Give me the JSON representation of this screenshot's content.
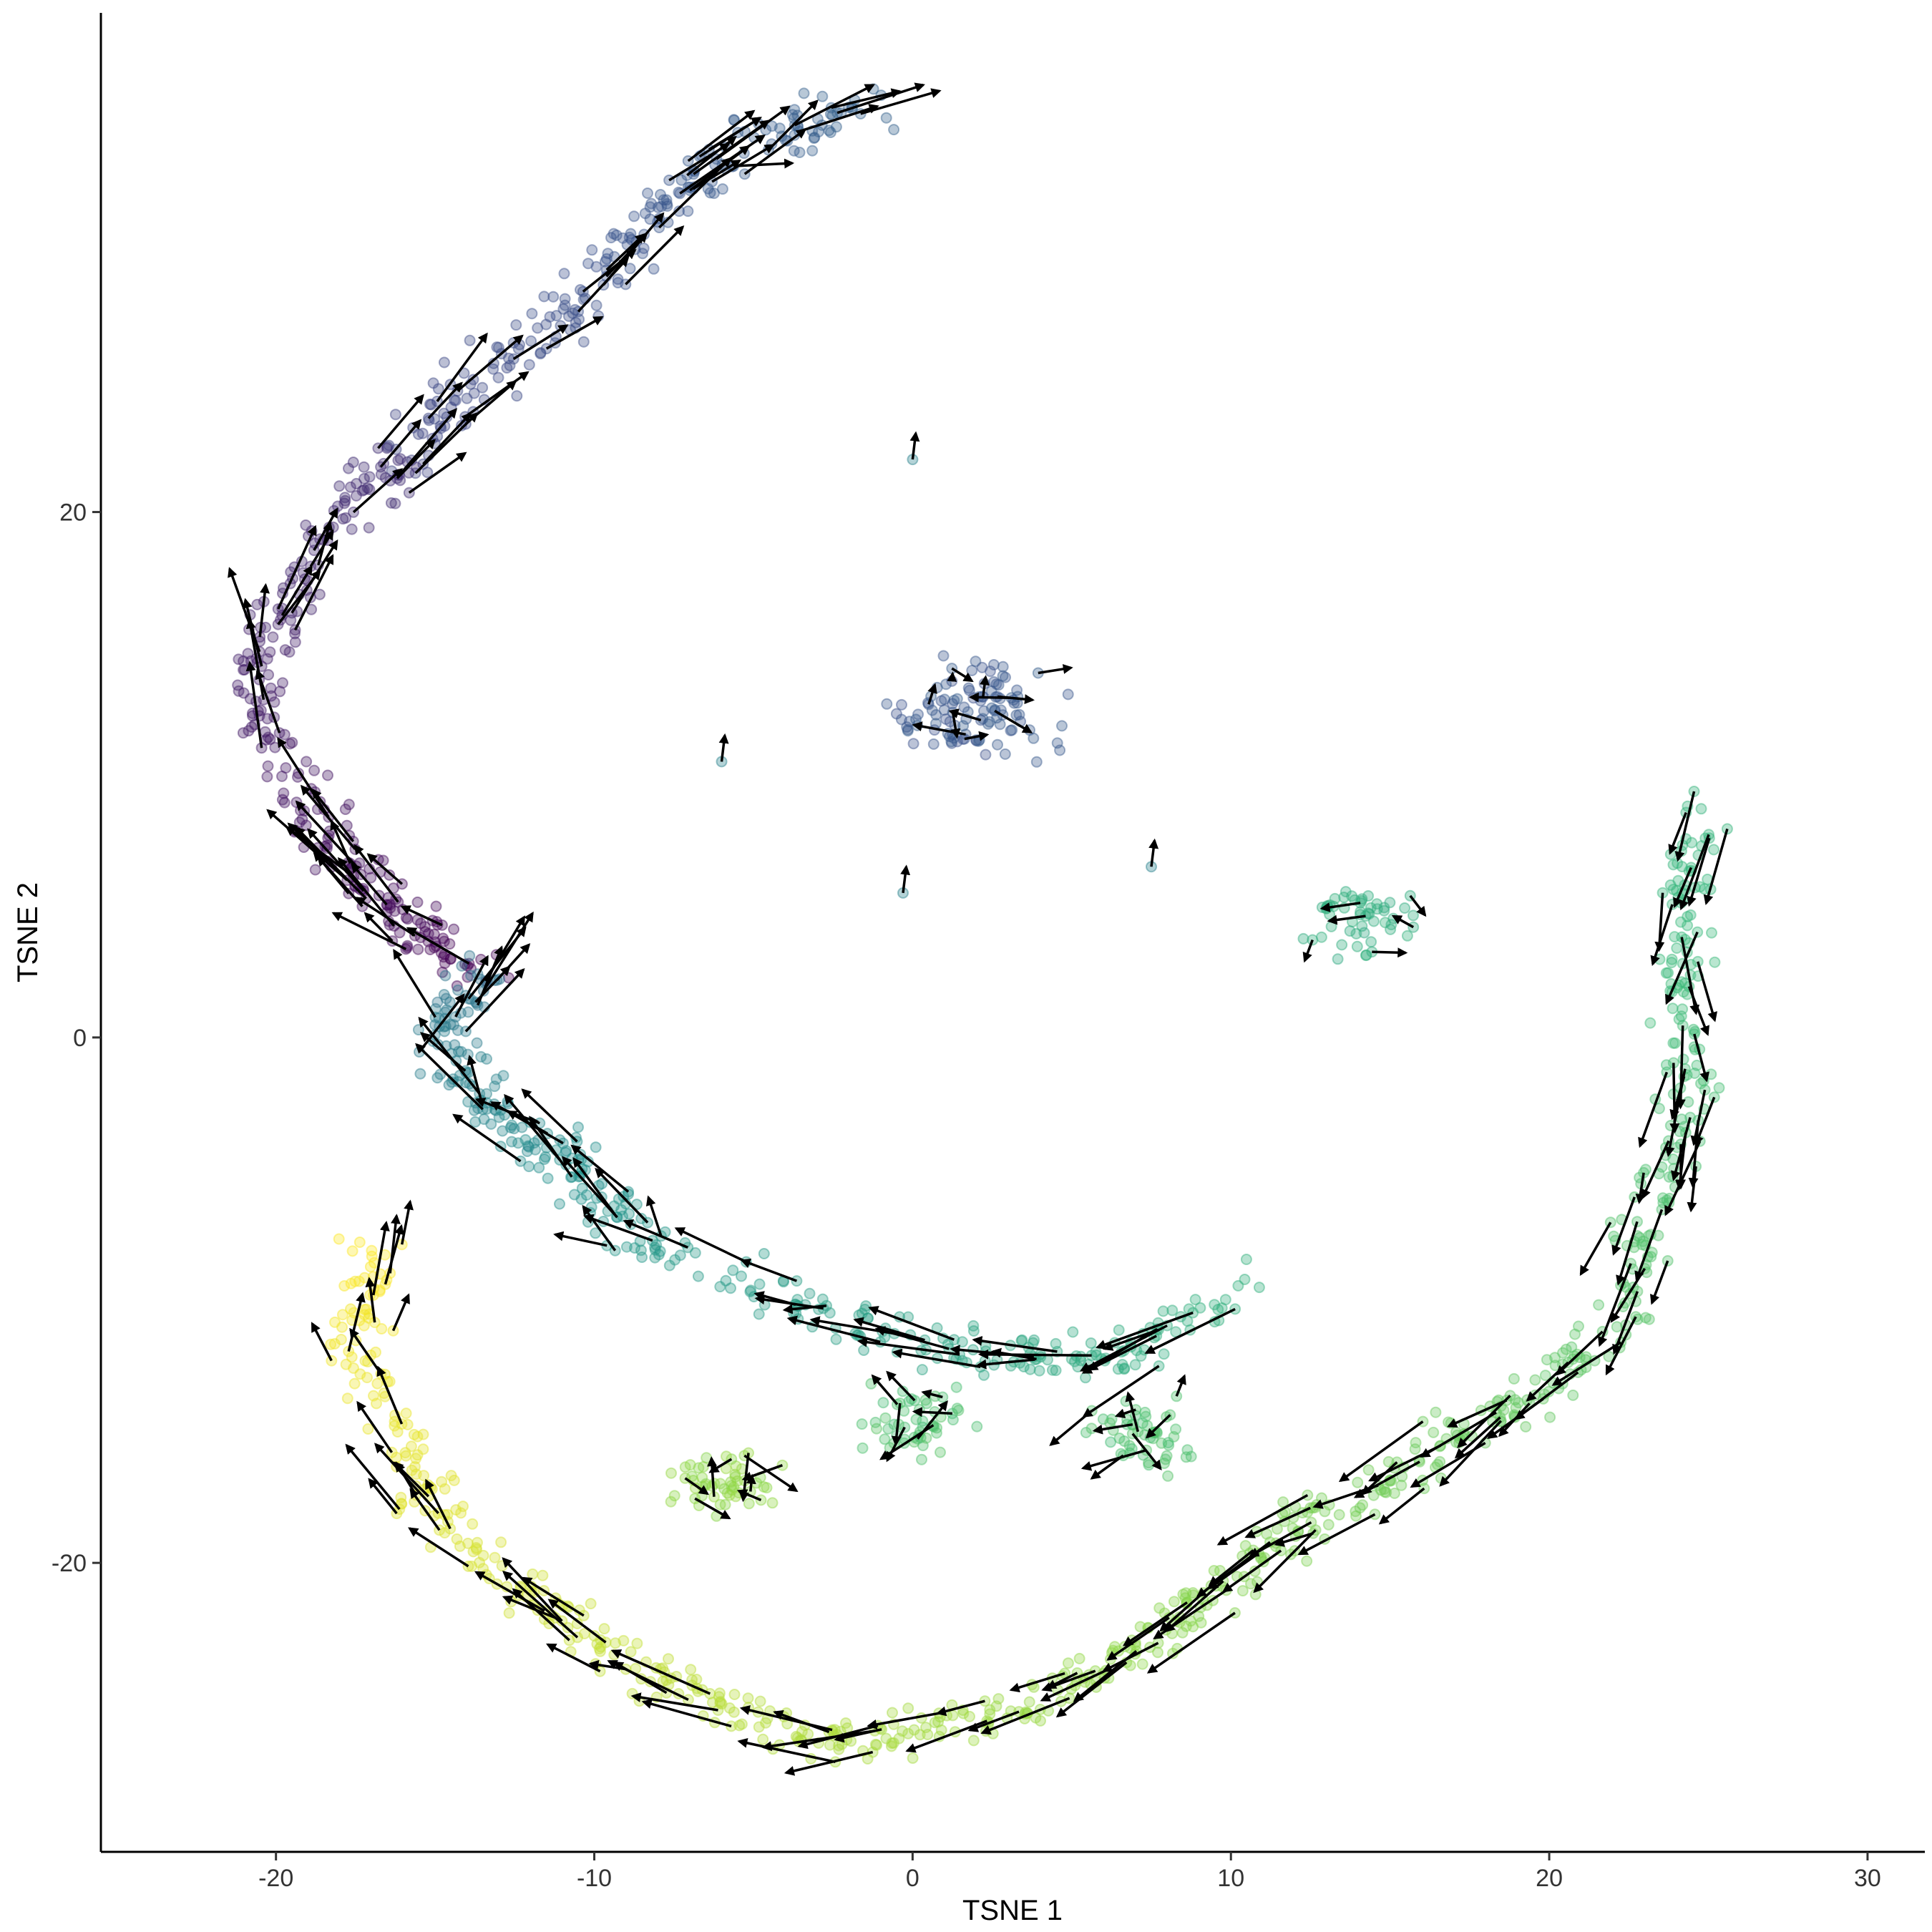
{
  "chart_data": {
    "type": "scatter",
    "title": "",
    "xlabel": "TSNE 1",
    "ylabel": "TSNE 2",
    "xlim": [
      -25.5,
      31.8
    ],
    "ylim": [
      -31.0,
      39.0
    ],
    "xticks": [
      -20,
      -10,
      0,
      10,
      20,
      30
    ],
    "yticks": [
      -20,
      0,
      20
    ],
    "grid": false,
    "legend": "none",
    "point_style": "semi-transparent filled circles colored along a viridis gradient (purple to yellow) by trajectory position",
    "arrow_style": "black arrows indicating velocity direction",
    "palette": [
      "#440154",
      "#3b528b",
      "#21908c",
      "#35b779",
      "#8fd744",
      "#fde725"
    ],
    "trajectory": [
      {
        "x": -1.0,
        "y": 35.5
      },
      {
        "x": -5.0,
        "y": 34.0
      },
      {
        "x": -8.0,
        "y": 31.5
      },
      {
        "x": -10.5,
        "y": 28.0
      },
      {
        "x": -13.5,
        "y": 25.0
      },
      {
        "x": -16.0,
        "y": 22.0
      },
      {
        "x": -18.5,
        "y": 19.0
      },
      {
        "x": -20.5,
        "y": 15.0
      },
      {
        "x": -20.0,
        "y": 11.0
      },
      {
        "x": -18.0,
        "y": 7.0
      },
      {
        "x": -16.0,
        "y": 4.5
      },
      {
        "x": -13.5,
        "y": 2.5
      },
      {
        "x": -15.0,
        "y": 0.0
      },
      {
        "x": -13.0,
        "y": -3.0
      },
      {
        "x": -10.5,
        "y": -5.0
      },
      {
        "x": -8.5,
        "y": -8.0
      },
      {
        "x": -3.0,
        "y": -10.5
      },
      {
        "x": 2.0,
        "y": -12.0
      },
      {
        "x": 6.0,
        "y": -12.5
      },
      {
        "x": 10.5,
        "y": -9.5
      },
      {
        "x": -17.0,
        "y": -8.0
      },
      {
        "x": -17.5,
        "y": -12.0
      },
      {
        "x": -15.5,
        "y": -17.0
      },
      {
        "x": -13.5,
        "y": -20.0
      },
      {
        "x": -10.0,
        "y": -23.0
      },
      {
        "x": -6.0,
        "y": -25.5
      },
      {
        "x": -2.0,
        "y": -27.0
      },
      {
        "x": 2.0,
        "y": -26.0
      },
      {
        "x": 6.0,
        "y": -24.0
      },
      {
        "x": 9.0,
        "y": -21.5
      },
      {
        "x": 12.0,
        "y": -18.5
      },
      {
        "x": 15.5,
        "y": -16.5
      },
      {
        "x": 19.0,
        "y": -14.0
      },
      {
        "x": 22.0,
        "y": -11.0
      },
      {
        "x": 23.5,
        "y": -6.0
      },
      {
        "x": 24.5,
        "y": -1.0
      },
      {
        "x": 24.0,
        "y": 4.0
      },
      {
        "x": 25.0,
        "y": 9.0
      }
    ],
    "clusters": [
      {
        "x": 2.0,
        "y": 12.5
      },
      {
        "x": 14.0,
        "y": 4.5
      },
      {
        "x": -6.0,
        "y": -17.0
      },
      {
        "x": 0.0,
        "y": -14.5
      },
      {
        "x": 7.0,
        "y": -15.0
      }
    ],
    "isolated_points": [
      {
        "x": 0.0,
        "y": 22.0
      },
      {
        "x": -6.0,
        "y": 10.5
      },
      {
        "x": 7.5,
        "y": 6.5
      },
      {
        "x": -0.3,
        "y": 5.5
      }
    ]
  }
}
